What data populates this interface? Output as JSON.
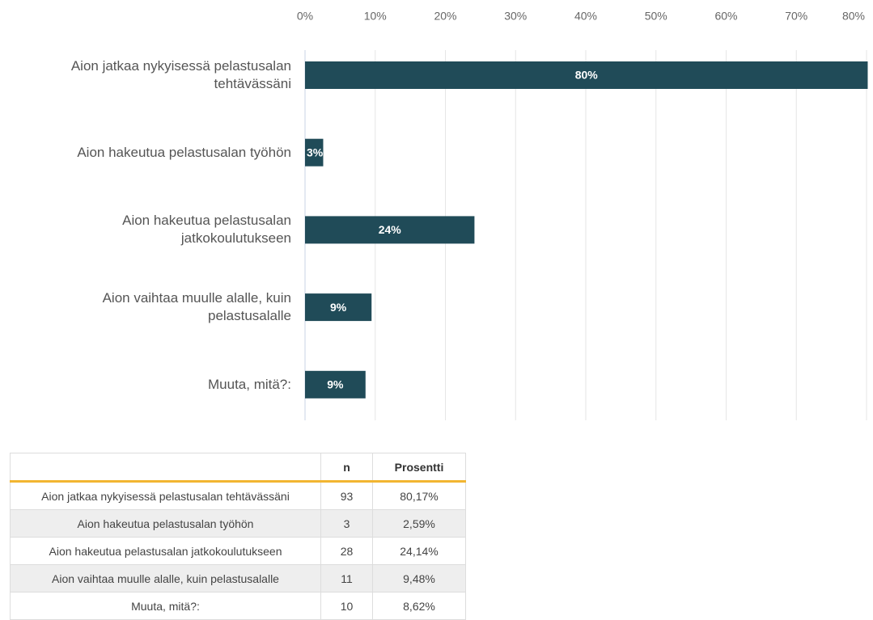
{
  "chart_data": {
    "type": "bar",
    "orientation": "horizontal",
    "categories": [
      "Aion jatkaa nykyisessä pelastusalan tehtävässäni",
      "Aion hakeutua pelastusalan työhön",
      "Aion hakeutua pelastusalan jatkokoulutukseen",
      "Aion vaihtaa muulle alalle, kuin pelastusalalle",
      "Muuta, mitä?:"
    ],
    "values": [
      80.17,
      2.59,
      24.14,
      9.48,
      8.62
    ],
    "value_labels": [
      "80%",
      "3%",
      "24%",
      "9%",
      "9%"
    ],
    "color": "#204b58",
    "xlim": [
      0,
      80
    ],
    "xticks": [
      {
        "value": 0,
        "label": "0%"
      },
      {
        "value": 10,
        "label": "10%"
      },
      {
        "value": 20,
        "label": "20%"
      },
      {
        "value": 30,
        "label": "30%"
      },
      {
        "value": 40,
        "label": "40%"
      },
      {
        "value": 50,
        "label": "50%"
      },
      {
        "value": 60,
        "label": "60%"
      },
      {
        "value": 70,
        "label": "70%"
      },
      {
        "value": 80,
        "label": "80%"
      }
    ],
    "grid": true
  },
  "table": {
    "header": [
      "n",
      "Prosentti"
    ],
    "rows": [
      [
        "Aion jatkaa nykyisessä pelastusalan tehtävässäni",
        "93",
        "80,17%"
      ],
      [
        "Aion hakeutua pelastusalan työhön",
        "3",
        "2,59%"
      ],
      [
        "Aion hakeutua pelastusalan jatkokoulutukseen",
        "28",
        "24,14%"
      ],
      [
        "Aion vaihtaa muulle alalle, kuin pelastusalalle",
        "11",
        "9,48%"
      ],
      [
        "Muuta, mitä?:",
        "10",
        "8,62%"
      ]
    ]
  }
}
